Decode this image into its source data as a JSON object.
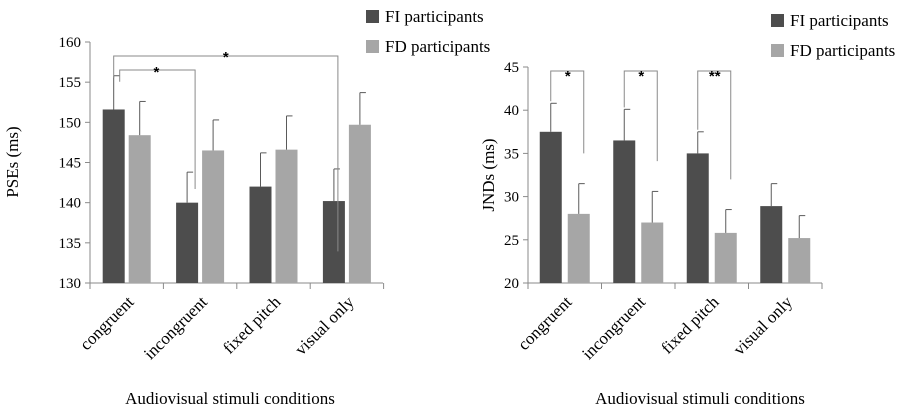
{
  "chart_data": [
    {
      "type": "bar",
      "ylabel": "PSEs (ms)",
      "xlabel": "Audiovisual  stimuli  conditions",
      "ylim": [
        130,
        160
      ],
      "yticks": [
        "130",
        "135",
        "140",
        "145",
        "150",
        "155",
        "160"
      ],
      "categories": [
        "congruent",
        "incongruent",
        "fixed pitch",
        "visual only"
      ],
      "series": [
        {
          "name": "FI participants",
          "color": "#4d4d4d",
          "values": [
            151.6,
            140.0,
            142.0,
            140.2
          ],
          "errors": [
            4.2,
            3.8,
            4.2,
            4.0
          ]
        },
        {
          "name": "FD participants",
          "color": "#a6a6a6",
          "values": [
            148.4,
            146.5,
            146.6,
            149.7
          ],
          "errors": [
            4.2,
            3.8,
            4.2,
            4.0
          ]
        }
      ],
      "significance": [
        {
          "from": 0,
          "to": 1,
          "label": "*"
        },
        {
          "from": 0,
          "to": 3,
          "label": "*"
        }
      ],
      "legend_position": "top-right"
    },
    {
      "type": "bar",
      "ylabel": "JNDs (ms)",
      "xlabel": "Audiovisual  stimuli  conditions",
      "ylim": [
        20,
        45
      ],
      "yticks": [
        "20",
        "25",
        "30",
        "35",
        "40",
        "45"
      ],
      "categories": [
        "congruent",
        "incongruent",
        "fixed pitch",
        "visual only"
      ],
      "series": [
        {
          "name": "FI participants",
          "color": "#4d4d4d",
          "values": [
            37.5,
            36.5,
            35.0,
            28.9
          ],
          "errors": [
            3.3,
            3.6,
            2.5,
            2.6
          ]
        },
        {
          "name": "FD participants",
          "color": "#a6a6a6",
          "values": [
            28.0,
            27.0,
            25.8,
            25.2
          ],
          "errors": [
            3.5,
            3.6,
            2.7,
            2.6
          ]
        }
      ],
      "significance": [
        {
          "category": 0,
          "label": "*"
        },
        {
          "category": 1,
          "label": "*"
        },
        {
          "category": 2,
          "label": "**"
        }
      ],
      "legend_position": "top-right"
    }
  ]
}
